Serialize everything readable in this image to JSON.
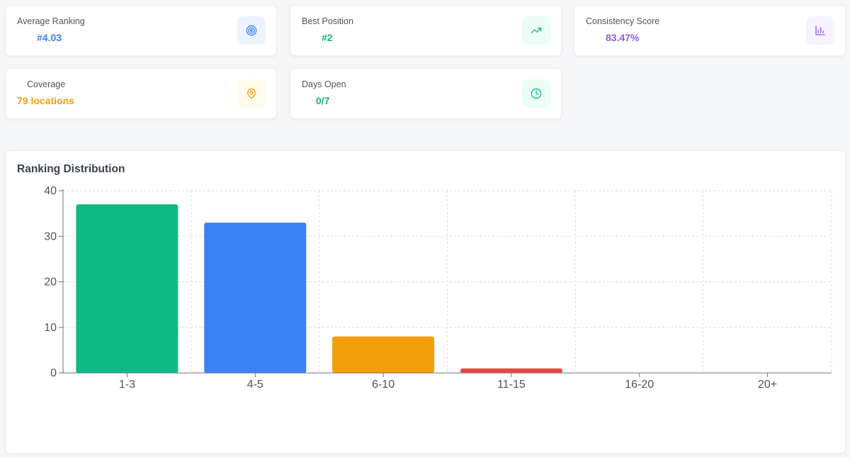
{
  "stats": [
    {
      "label": "Average Ranking",
      "value": "#4.03",
      "icon": "target-icon",
      "value_color": "#3b82f6",
      "icon_bg": "#eef4ff",
      "icon_color": "#3b82f6"
    },
    {
      "label": "Best Position",
      "value": "#2",
      "icon": "trending-up-icon",
      "value_color": "#10b981",
      "icon_bg": "#ecfdf5",
      "icon_color": "#10b981"
    },
    {
      "label": "Consistency Score",
      "value": "83.47%",
      "icon": "bar-chart-icon",
      "value_color": "#8b5cf6",
      "icon_bg": "#f5f3ff",
      "icon_color": "#8b5cf6"
    },
    {
      "label": "Coverage",
      "value": "79 locations",
      "icon": "map-pin-icon",
      "value_color": "#f59e0b",
      "icon_bg": "#fffbeb",
      "icon_color": "#f59e0b"
    },
    {
      "label": "Days Open",
      "value": "0/7",
      "icon": "clock-icon",
      "value_color": "#10b981",
      "icon_bg": "#ecfdf5",
      "icon_color": "#10b981"
    }
  ],
  "chart_card": {
    "title": "Ranking Distribution"
  },
  "chart_data": {
    "type": "bar",
    "title": "Ranking Distribution",
    "categories": [
      "1-3",
      "4-5",
      "6-10",
      "11-15",
      "16-20",
      "20+"
    ],
    "values": [
      37,
      33,
      8,
      1,
      0,
      0
    ],
    "colors": [
      "#10b981",
      "#3b82f6",
      "#f59e0b",
      "#ef4444",
      "#8b5cf6",
      "#6b7280"
    ],
    "ylim": [
      0,
      40
    ],
    "yticks": [
      0,
      10,
      20,
      30,
      40
    ],
    "grid": true,
    "xlabel": "",
    "ylabel": ""
  }
}
